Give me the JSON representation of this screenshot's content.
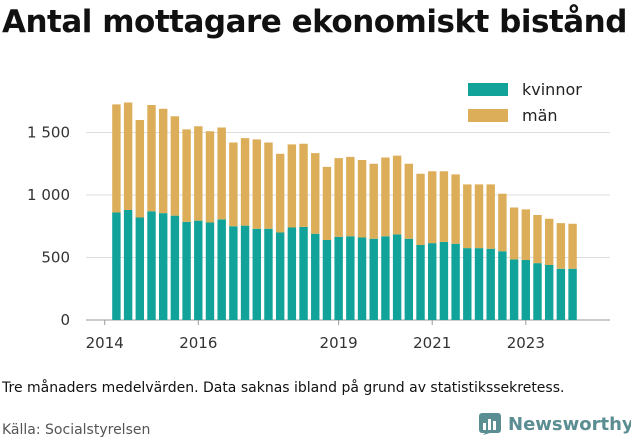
{
  "title": "Antal mottagare ekonomiskt bistånd",
  "note": "Tre månaders medelvärden. Data saknas ibland på grund av statistikssekretess.",
  "source": "Källa: Socialstyrelsen",
  "brand": {
    "name": "Newsworthy",
    "icon": "newsworthy-logo-icon",
    "color": "#5b8e92"
  },
  "chart_data": {
    "type": "bar",
    "stacked": true,
    "ylim": [
      0,
      1800
    ],
    "xlim": [
      2013.6,
      2024.8
    ],
    "grid": true,
    "legend_position": "top-right",
    "y_ticks": [
      {
        "value": 0,
        "label": "0"
      },
      {
        "value": 500,
        "label": "500"
      },
      {
        "value": 1000,
        "label": "1 000"
      },
      {
        "value": 1500,
        "label": "1 500"
      }
    ],
    "x_ticks": [
      {
        "value": 2014,
        "label": "2014"
      },
      {
        "value": 2016,
        "label": "2016"
      },
      {
        "value": 2019,
        "label": "2019"
      },
      {
        "value": 2021,
        "label": "2021"
      },
      {
        "value": 2023,
        "label": "2023"
      }
    ],
    "x": [
      2014.25,
      2014.5,
      2014.75,
      2015.0,
      2015.25,
      2015.5,
      2015.75,
      2016.0,
      2016.25,
      2016.5,
      2016.75,
      2017.0,
      2017.25,
      2017.5,
      2017.75,
      2018.0,
      2018.25,
      2018.5,
      2018.75,
      2019.0,
      2019.25,
      2019.5,
      2019.75,
      2020.0,
      2020.25,
      2020.5,
      2020.75,
      2021.0,
      2021.25,
      2021.5,
      2021.75,
      2022.0,
      2022.25,
      2022.5,
      2022.75,
      2023.0,
      2023.25,
      2023.5,
      2023.75,
      2024.0
    ],
    "series": [
      {
        "name": "kvinnor",
        "color": "#11a39a",
        "values": [
          860,
          880,
          820,
          870,
          855,
          835,
          785,
          795,
          780,
          805,
          750,
          755,
          730,
          730,
          700,
          740,
          745,
          690,
          640,
          665,
          670,
          660,
          650,
          670,
          685,
          650,
          600,
          615,
          625,
          610,
          575,
          575,
          570,
          550,
          485,
          480,
          455,
          440,
          410,
          410
        ]
      },
      {
        "name": "män",
        "color": "#dcae5a",
        "values": [
          865,
          860,
          780,
          850,
          835,
          795,
          740,
          755,
          730,
          735,
          670,
          700,
          715,
          690,
          630,
          665,
          665,
          645,
          585,
          630,
          635,
          620,
          600,
          630,
          630,
          600,
          570,
          575,
          565,
          555,
          510,
          510,
          515,
          460,
          415,
          405,
          385,
          370,
          365,
          360
        ]
      }
    ]
  }
}
